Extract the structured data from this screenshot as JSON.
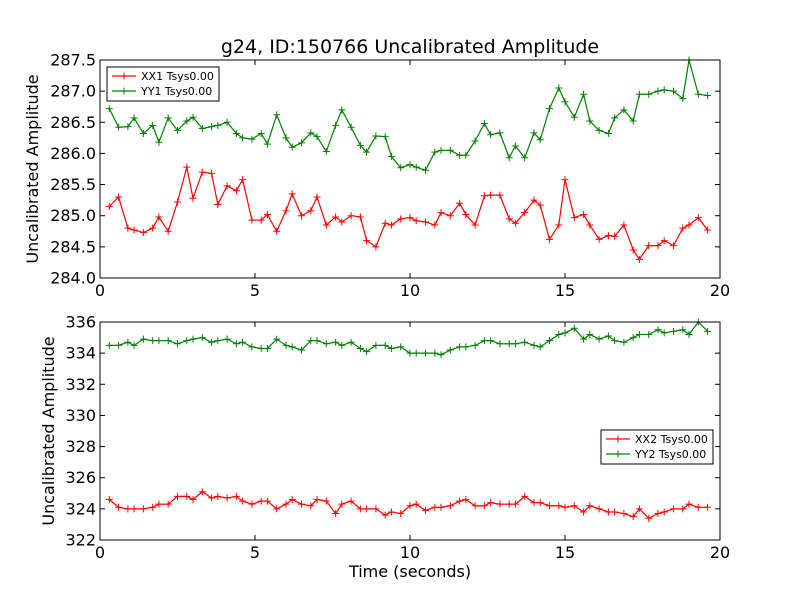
{
  "chart_data": [
    {
      "type": "line",
      "title": "g24, ID:150766 Uncalibrated Amplitude",
      "xlabel": "",
      "ylabel": "Uncalibrated Amplitude",
      "xlim": [
        0,
        20
      ],
      "ylim": [
        284.0,
        287.5
      ],
      "x_ticks": [
        0,
        5,
        10,
        15,
        20
      ],
      "x_tick_labels": [
        "0",
        "5",
        "10",
        "15",
        "20"
      ],
      "y_ticks": [
        284.0,
        284.5,
        285.0,
        285.5,
        286.0,
        286.5,
        287.0,
        287.5
      ],
      "y_tick_labels": [
        "284.0",
        "284.5",
        "285.0",
        "285.5",
        "286.0",
        "286.5",
        "287.0",
        "287.5"
      ],
      "legend_position": "top-left",
      "grid": false,
      "x": [
        0.3,
        0.6,
        0.9,
        1.1,
        1.4,
        1.7,
        1.9,
        2.2,
        2.5,
        2.8,
        3.0,
        3.3,
        3.6,
        3.8,
        4.1,
        4.4,
        4.6,
        4.9,
        5.2,
        5.4,
        5.7,
        6.0,
        6.2,
        6.5,
        6.8,
        7.0,
        7.3,
        7.6,
        7.8,
        8.1,
        8.4,
        8.6,
        8.9,
        9.2,
        9.4,
        9.7,
        10.0,
        10.2,
        10.5,
        10.8,
        11.0,
        11.3,
        11.6,
        11.8,
        12.1,
        12.4,
        12.6,
        12.9,
        13.2,
        13.4,
        13.7,
        14.0,
        14.2,
        14.5,
        14.8,
        15.0,
        15.3,
        15.6,
        15.8,
        16.1,
        16.4,
        16.6,
        16.9,
        17.2,
        17.4,
        17.7,
        18.0,
        18.2,
        18.5,
        18.8,
        19.0,
        19.3,
        19.6
      ],
      "series": [
        {
          "name": "XX1 Tsys0.00",
          "color": "#ff0000",
          "values": [
            285.15,
            285.3,
            284.8,
            284.77,
            284.73,
            284.8,
            284.98,
            284.75,
            285.22,
            285.78,
            285.28,
            285.7,
            285.68,
            285.18,
            285.48,
            285.4,
            285.58,
            284.93,
            284.93,
            285.02,
            284.75,
            285.08,
            285.35,
            285.0,
            285.08,
            285.3,
            284.85,
            284.98,
            284.9,
            285.0,
            284.98,
            284.6,
            284.5,
            284.88,
            284.85,
            284.95,
            284.97,
            284.92,
            284.9,
            284.85,
            285.05,
            285.0,
            285.2,
            285.02,
            284.85,
            285.32,
            285.33,
            285.33,
            284.95,
            284.88,
            285.05,
            285.25,
            285.17,
            284.62,
            284.85,
            285.58,
            284.97,
            285.02,
            284.85,
            284.62,
            284.68,
            284.67,
            284.85,
            284.45,
            284.3,
            284.52,
            284.52,
            284.6,
            284.52,
            284.8,
            284.85,
            284.97,
            284.77
          ]
        },
        {
          "name": "YY1 Tsys0.00",
          "color": "#008000",
          "values": [
            286.72,
            286.42,
            286.43,
            286.57,
            286.32,
            286.45,
            286.18,
            286.57,
            286.37,
            286.52,
            286.58,
            286.4,
            286.43,
            286.45,
            286.5,
            286.32,
            286.25,
            286.23,
            286.32,
            286.15,
            286.62,
            286.25,
            286.1,
            286.17,
            286.33,
            286.27,
            286.03,
            286.45,
            286.7,
            286.42,
            286.13,
            286.02,
            286.28,
            286.27,
            285.95,
            285.77,
            285.82,
            285.78,
            285.73,
            286.02,
            286.05,
            286.05,
            285.97,
            285.97,
            286.2,
            286.48,
            286.3,
            286.33,
            285.93,
            286.12,
            285.93,
            286.33,
            286.22,
            286.72,
            287.05,
            286.83,
            286.58,
            286.95,
            286.52,
            286.37,
            286.32,
            286.57,
            286.7,
            286.52,
            286.95,
            286.95,
            287.0,
            287.02,
            287.0,
            286.88,
            287.5,
            286.95,
            286.93
          ]
        }
      ]
    },
    {
      "type": "line",
      "title": "",
      "xlabel": "Time (seconds)",
      "ylabel": "Uncalibrated Amplitude",
      "xlim": [
        0,
        20
      ],
      "ylim": [
        322,
        336
      ],
      "x_ticks": [
        0,
        5,
        10,
        15,
        20
      ],
      "x_tick_labels": [
        "0",
        "5",
        "10",
        "15",
        "20"
      ],
      "y_ticks": [
        322,
        324,
        326,
        328,
        330,
        332,
        334,
        336
      ],
      "y_tick_labels": [
        "322",
        "324",
        "326",
        "328",
        "330",
        "332",
        "334",
        "336"
      ],
      "legend_position": "center-right",
      "grid": false,
      "x": [
        0.3,
        0.6,
        0.9,
        1.1,
        1.4,
        1.7,
        1.9,
        2.2,
        2.5,
        2.8,
        3.0,
        3.3,
        3.6,
        3.8,
        4.1,
        4.4,
        4.6,
        4.9,
        5.2,
        5.4,
        5.7,
        6.0,
        6.2,
        6.5,
        6.8,
        7.0,
        7.3,
        7.6,
        7.8,
        8.1,
        8.4,
        8.6,
        8.9,
        9.2,
        9.4,
        9.7,
        10.0,
        10.2,
        10.5,
        10.8,
        11.0,
        11.3,
        11.6,
        11.8,
        12.1,
        12.4,
        12.6,
        12.9,
        13.2,
        13.4,
        13.7,
        14.0,
        14.2,
        14.5,
        14.8,
        15.0,
        15.3,
        15.6,
        15.8,
        16.1,
        16.4,
        16.6,
        16.9,
        17.2,
        17.4,
        17.7,
        18.0,
        18.2,
        18.5,
        18.8,
        19.0,
        19.3,
        19.6
      ],
      "series": [
        {
          "name": "XX2 Tsys0.00",
          "color": "#ff0000",
          "values": [
            324.6,
            324.1,
            324.0,
            324.0,
            324.0,
            324.1,
            324.3,
            324.3,
            324.8,
            324.8,
            324.6,
            325.1,
            324.7,
            324.8,
            324.7,
            324.8,
            324.5,
            324.3,
            324.5,
            324.5,
            324.0,
            324.3,
            324.6,
            324.3,
            324.2,
            324.6,
            324.5,
            323.7,
            324.3,
            324.5,
            324.0,
            324.0,
            324.0,
            323.6,
            323.8,
            323.7,
            324.2,
            324.3,
            323.9,
            324.1,
            324.1,
            324.2,
            324.5,
            324.6,
            324.2,
            324.2,
            324.4,
            324.3,
            324.3,
            324.3,
            324.8,
            324.4,
            324.4,
            324.2,
            324.2,
            324.1,
            324.2,
            323.8,
            324.2,
            324.0,
            323.8,
            323.8,
            323.7,
            323.5,
            324.0,
            323.4,
            323.7,
            323.8,
            324.0,
            324.0,
            324.3,
            324.1,
            324.1
          ]
        },
        {
          "name": "YY2 Tsys0.00",
          "color": "#008000",
          "values": [
            334.5,
            334.5,
            334.7,
            334.5,
            334.9,
            334.8,
            334.8,
            334.8,
            334.6,
            334.8,
            334.9,
            335.0,
            334.7,
            334.8,
            334.9,
            334.6,
            334.7,
            334.4,
            334.3,
            334.3,
            334.9,
            334.5,
            334.4,
            334.2,
            334.8,
            334.8,
            334.6,
            334.7,
            334.5,
            334.7,
            334.3,
            334.1,
            334.5,
            334.5,
            334.3,
            334.4,
            334.0,
            334.0,
            334.0,
            334.0,
            333.9,
            334.2,
            334.4,
            334.4,
            334.5,
            334.8,
            334.8,
            334.6,
            334.6,
            334.6,
            334.7,
            334.5,
            334.4,
            334.8,
            335.2,
            335.3,
            335.6,
            334.9,
            335.2,
            334.9,
            335.1,
            334.8,
            334.7,
            335.0,
            335.2,
            335.2,
            335.5,
            335.3,
            335.4,
            335.5,
            335.2,
            336.0,
            335.4
          ]
        }
      ]
    }
  ]
}
